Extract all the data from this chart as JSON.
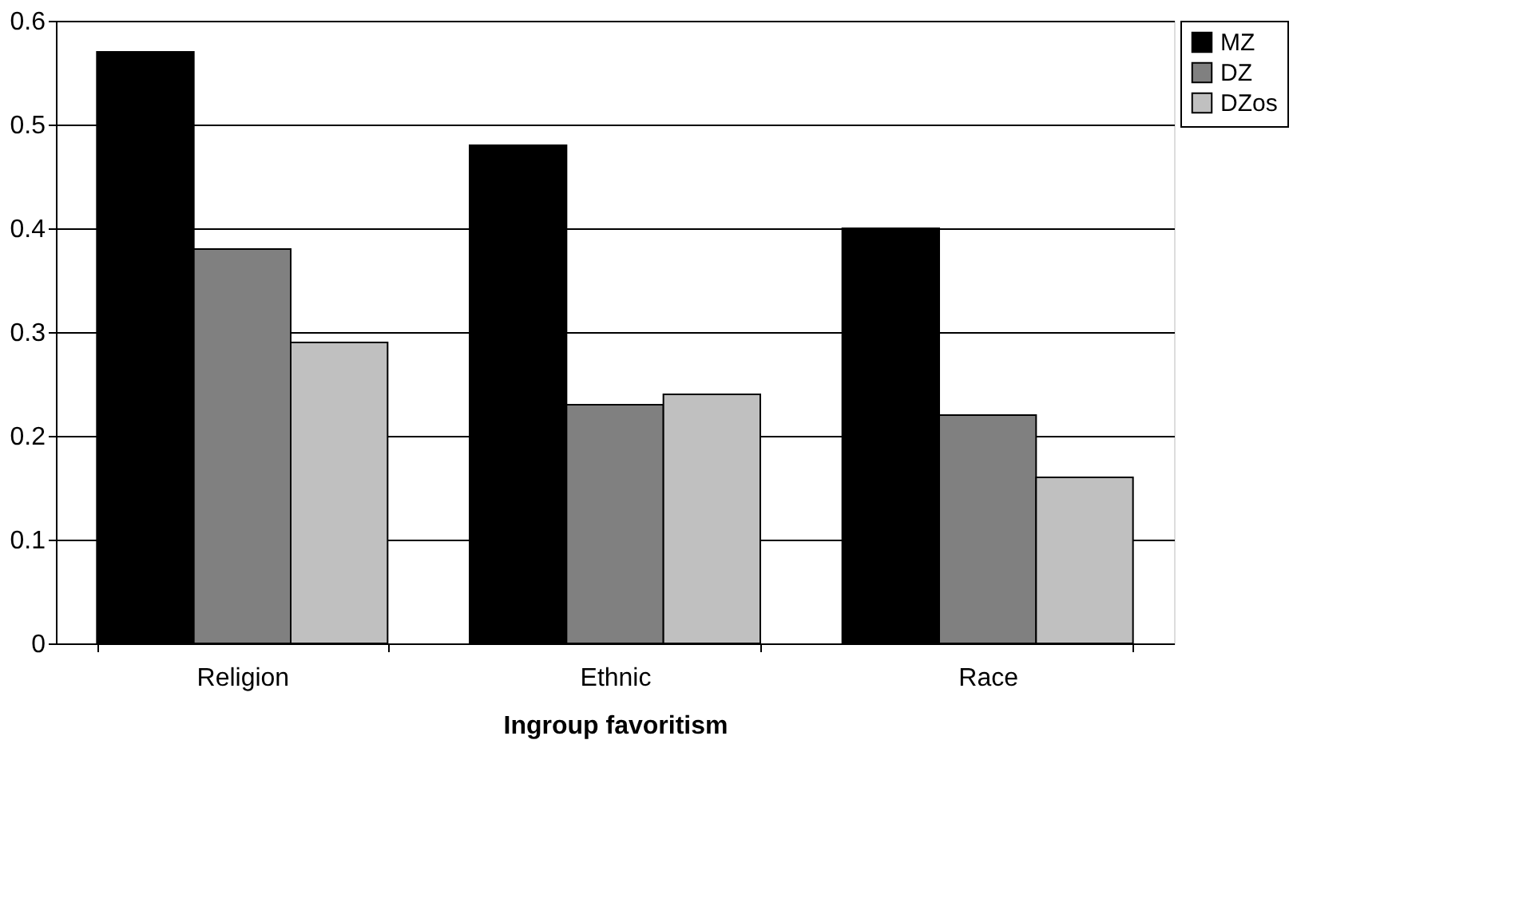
{
  "chart_data": {
    "type": "bar",
    "xlabel": "Ingroup favoritism",
    "categories": [
      "Religion",
      "Ethnic",
      "Race"
    ],
    "series": [
      {
        "name": "MZ",
        "color": "#000000",
        "values": [
          0.57,
          0.48,
          0.4
        ]
      },
      {
        "name": "DZ",
        "color": "#808080",
        "values": [
          0.38,
          0.23,
          0.22
        ]
      },
      {
        "name": "DZos",
        "color": "#c0c0c0",
        "values": [
          0.29,
          0.24,
          0.16
        ]
      }
    ],
    "ylim": [
      0,
      0.6
    ],
    "yticks": [
      0,
      0.1,
      0.2,
      0.3,
      0.4,
      0.5,
      0.6
    ],
    "grid": "y",
    "legend": "right"
  }
}
